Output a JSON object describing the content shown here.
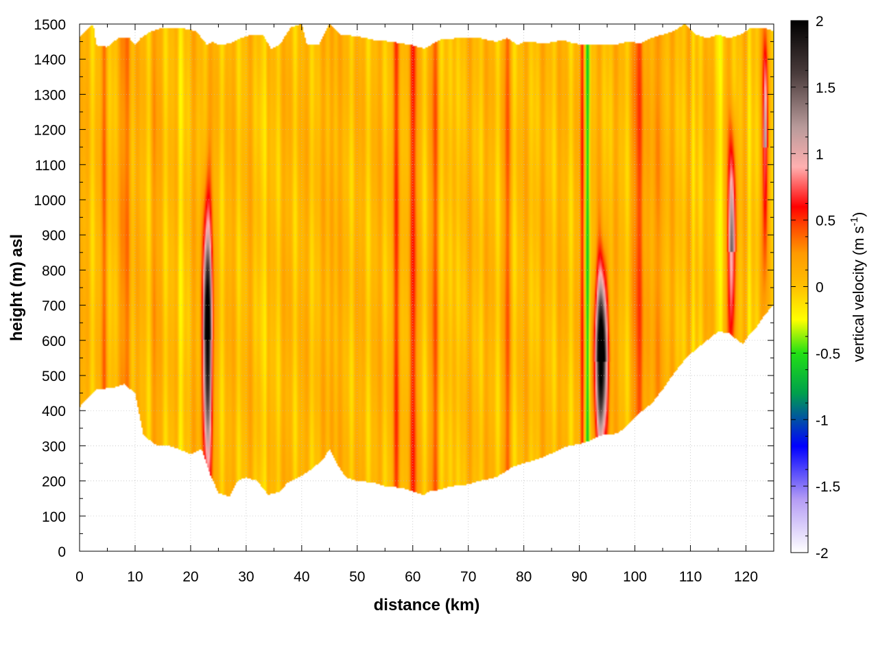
{
  "chart_data": {
    "type": "heatmap",
    "xlabel": "distance (km)",
    "ylabel": "height (m) asl",
    "colorbar_label_main": "vertical velocity (m s",
    "colorbar_label_exp": "-1",
    "colorbar_label_end": ")",
    "xlim": [
      0,
      125
    ],
    "ylim": [
      0,
      1500
    ],
    "clim": [
      -2,
      2
    ],
    "grid": true,
    "x_ticks": [
      0,
      10,
      20,
      30,
      40,
      50,
      60,
      70,
      80,
      90,
      100,
      110,
      120
    ],
    "y_ticks": [
      0,
      100,
      200,
      300,
      400,
      500,
      600,
      700,
      800,
      900,
      1000,
      1100,
      1200,
      1300,
      1400,
      1500
    ],
    "colorbar_ticks": [
      "2",
      "1.5",
      "1",
      "0.5",
      "0",
      "-0.5",
      "-1",
      "-1.5",
      "-2"
    ],
    "colormap": [
      {
        "v": -2.0,
        "color": "#ffffff"
      },
      {
        "v": -1.6,
        "color": "#b49cf5"
      },
      {
        "v": -1.2,
        "color": "#0000ff"
      },
      {
        "v": -0.8,
        "color": "#00a04c"
      },
      {
        "v": -0.5,
        "color": "#22e014"
      },
      {
        "v": -0.25,
        "color": "#ffff00"
      },
      {
        "v": 0.0,
        "color": "#ffc000"
      },
      {
        "v": 0.25,
        "color": "#ff9a00"
      },
      {
        "v": 0.45,
        "color": "#ff4a00"
      },
      {
        "v": 0.6,
        "color": "#ff0000"
      },
      {
        "v": 0.9,
        "color": "#ffb0b0"
      },
      {
        "v": 1.2,
        "color": "#b89a9a"
      },
      {
        "v": 1.6,
        "color": "#4a3c3c"
      },
      {
        "v": 2.0,
        "color": "#000000"
      }
    ],
    "terrain": [
      [
        0,
        410
      ],
      [
        3,
        460
      ],
      [
        6,
        465
      ],
      [
        8,
        475
      ],
      [
        10,
        450
      ],
      [
        11.5,
        330
      ],
      [
        14,
        300
      ],
      [
        16,
        300
      ],
      [
        18,
        290
      ],
      [
        20,
        275
      ],
      [
        22,
        290
      ],
      [
        23.5,
        220
      ],
      [
        25,
        165
      ],
      [
        27,
        155
      ],
      [
        28.5,
        200
      ],
      [
        30,
        210
      ],
      [
        32,
        200
      ],
      [
        34,
        160
      ],
      [
        36,
        170
      ],
      [
        37.5,
        195
      ],
      [
        40,
        215
      ],
      [
        42,
        235
      ],
      [
        44,
        265
      ],
      [
        45,
        290
      ],
      [
        46.5,
        245
      ],
      [
        48,
        210
      ],
      [
        50,
        200
      ],
      [
        53,
        195
      ],
      [
        55,
        185
      ],
      [
        58,
        180
      ],
      [
        60,
        170
      ],
      [
        62,
        160
      ],
      [
        63,
        170
      ],
      [
        65,
        175
      ],
      [
        67,
        185
      ],
      [
        70,
        190
      ],
      [
        72,
        200
      ],
      [
        75,
        210
      ],
      [
        78,
        240
      ],
      [
        80,
        250
      ],
      [
        83,
        265
      ],
      [
        86,
        285
      ],
      [
        88,
        300
      ],
      [
        90,
        305
      ],
      [
        92,
        315
      ],
      [
        94,
        330
      ],
      [
        97,
        335
      ],
      [
        99,
        365
      ],
      [
        101,
        395
      ],
      [
        103,
        420
      ],
      [
        105,
        460
      ],
      [
        107,
        505
      ],
      [
        109,
        545
      ],
      [
        111,
        575
      ],
      [
        113,
        600
      ],
      [
        115,
        625
      ],
      [
        117,
        620
      ],
      [
        118.5,
        600
      ],
      [
        119.5,
        590
      ],
      [
        120.5,
        615
      ],
      [
        122,
        640
      ],
      [
        123.5,
        675
      ],
      [
        125,
        700
      ]
    ],
    "top": [
      [
        0,
        1465
      ],
      [
        2.5,
        1500
      ],
      [
        3,
        1440
      ],
      [
        5,
        1435
      ],
      [
        7,
        1460
      ],
      [
        9,
        1460
      ],
      [
        10,
        1440
      ],
      [
        11,
        1460
      ],
      [
        13,
        1480
      ],
      [
        15,
        1490
      ],
      [
        18,
        1490
      ],
      [
        21,
        1480
      ],
      [
        23,
        1440
      ],
      [
        24,
        1450
      ],
      [
        25,
        1440
      ],
      [
        27,
        1445
      ],
      [
        29,
        1460
      ],
      [
        31,
        1470
      ],
      [
        33,
        1470
      ],
      [
        34.5,
        1430
      ],
      [
        36,
        1440
      ],
      [
        38,
        1490
      ],
      [
        40,
        1500
      ],
      [
        41,
        1440
      ],
      [
        43,
        1440
      ],
      [
        45,
        1500
      ],
      [
        47,
        1470
      ],
      [
        50,
        1465
      ],
      [
        53,
        1455
      ],
      [
        56,
        1450
      ],
      [
        60,
        1440
      ],
      [
        62,
        1430
      ],
      [
        65,
        1455
      ],
      [
        68,
        1460
      ],
      [
        72,
        1460
      ],
      [
        75,
        1450
      ],
      [
        77,
        1460
      ],
      [
        79,
        1440
      ],
      [
        80,
        1450
      ],
      [
        84,
        1445
      ],
      [
        87,
        1455
      ],
      [
        89,
        1445
      ],
      [
        91,
        1440
      ],
      [
        93,
        1440
      ],
      [
        96,
        1440
      ],
      [
        99,
        1450
      ],
      [
        101,
        1445
      ],
      [
        103,
        1460
      ],
      [
        105,
        1470
      ],
      [
        107,
        1480
      ],
      [
        109,
        1500
      ],
      [
        111,
        1470
      ],
      [
        113,
        1460
      ],
      [
        115,
        1470
      ],
      [
        117,
        1460
      ],
      [
        119,
        1470
      ],
      [
        121,
        1490
      ],
      [
        123,
        1490
      ],
      [
        125,
        1480
      ]
    ],
    "updrafts": [
      {
        "x": 23,
        "y": 600,
        "amp": 2.0,
        "wx": 0.8,
        "wy": 330,
        "y_top_fade": 900
      },
      {
        "x": 94,
        "y": 540,
        "amp": 2.0,
        "wx": 1.1,
        "wy": 210,
        "y_top_fade": 900
      },
      {
        "x": 117.5,
        "y": 850,
        "amp": 0.95,
        "wx": 0.7,
        "wy": 260,
        "y_top_fade": 1300
      },
      {
        "x": 123.5,
        "y": 1150,
        "amp": 0.7,
        "wx": 0.45,
        "wy": 300,
        "y_top_fade": 1500
      }
    ],
    "streaks": [
      {
        "x": 8.5,
        "v": 0.35,
        "w": 0.8
      },
      {
        "x": 4.5,
        "v": 0.2,
        "w": 0.6
      },
      {
        "x": 13.5,
        "v": 0.15,
        "w": 0.6
      },
      {
        "x": 18,
        "v": -0.25,
        "w": 0.5
      },
      {
        "x": 33.5,
        "v": -0.3,
        "w": 0.4
      },
      {
        "x": 45.5,
        "v": 0.18,
        "w": 0.6
      },
      {
        "x": 57,
        "v": 0.3,
        "w": 0.7
      },
      {
        "x": 60,
        "v": 0.35,
        "w": 0.9
      },
      {
        "x": 64,
        "v": 0.3,
        "w": 0.6
      },
      {
        "x": 67,
        "v": -0.2,
        "w": 0.5
      },
      {
        "x": 77,
        "v": 0.3,
        "w": 0.5
      },
      {
        "x": 91.5,
        "v": -0.55,
        "w": 0.35
      },
      {
        "x": 90.5,
        "v": 0.4,
        "w": 0.3
      },
      {
        "x": 101,
        "v": 0.38,
        "w": 1.2
      },
      {
        "x": 104.5,
        "v": 0.32,
        "w": 0.6
      },
      {
        "x": 110.5,
        "v": -0.2,
        "w": 0.4
      },
      {
        "x": 115.5,
        "v": -0.3,
        "w": 0.4
      },
      {
        "x": 120.5,
        "v": -0.2,
        "w": 0.4
      }
    ]
  }
}
